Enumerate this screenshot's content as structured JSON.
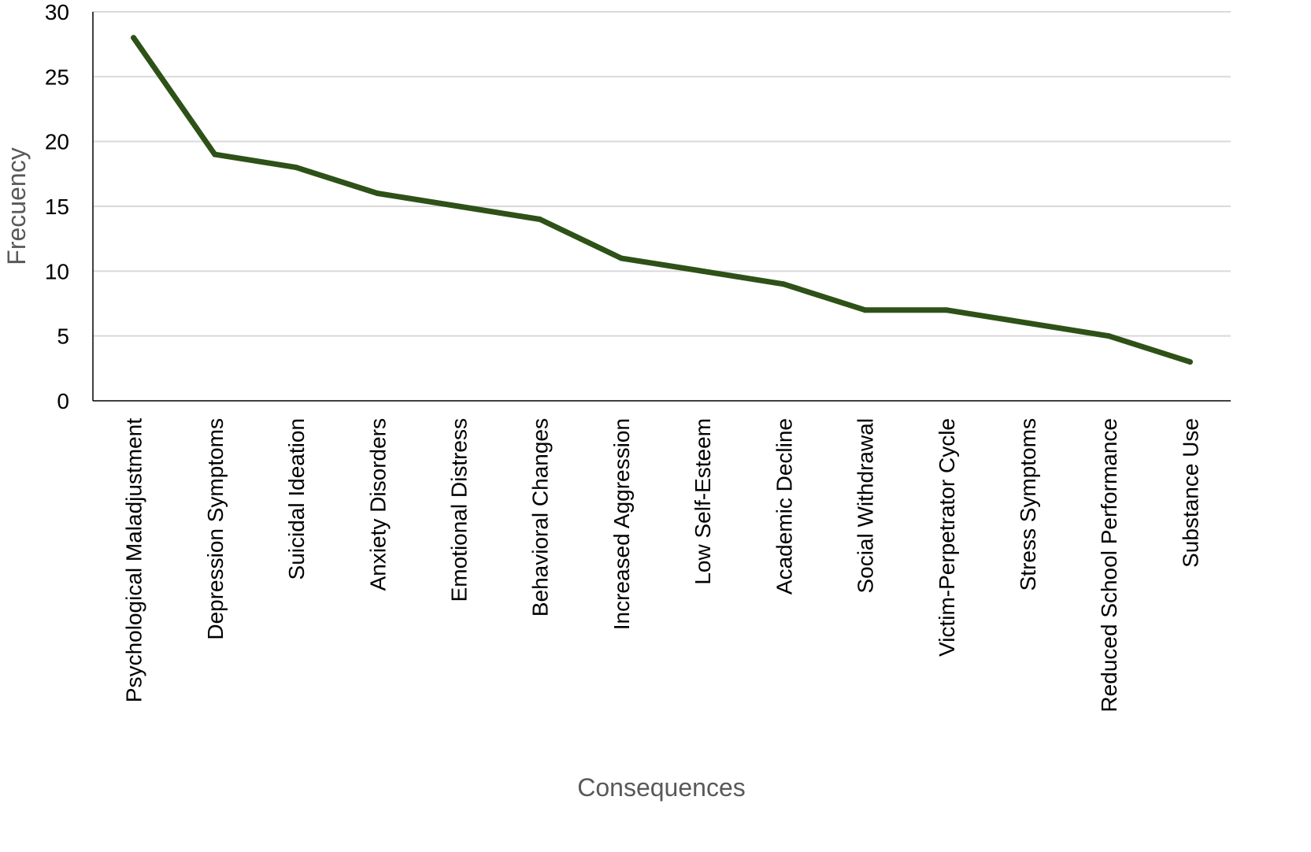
{
  "chart_data": {
    "type": "line",
    "title": "",
    "xlabel": "Consequences",
    "ylabel": "Frecuency",
    "ylim": [
      0,
      30
    ],
    "yticks": [
      0,
      5,
      10,
      15,
      20,
      25,
      30
    ],
    "grid": true,
    "legend": "none",
    "categories": [
      "Psychological Maladjustment",
      "Depression Symptoms",
      "Suicidal Ideation",
      "Anxiety Disorders",
      "Emotional Distress",
      "Behavioral Changes",
      "Increased Aggression",
      "Low Self-Esteem",
      "Academic Decline",
      "Social Withdrawal",
      "Victim-Perpetrator Cycle",
      "Stress Symptoms",
      "Reduced School Performance",
      "Substance Use"
    ],
    "series": [
      {
        "values": [
          28,
          19,
          18,
          16,
          15,
          14,
          11,
          10,
          9,
          7,
          7,
          6,
          5,
          3
        ],
        "color": "#2e5117"
      }
    ],
    "colors": {
      "line": "#2e5117",
      "gridline": "#d9d9d9",
      "axis": "#000000",
      "axis_title": "#595959"
    }
  }
}
